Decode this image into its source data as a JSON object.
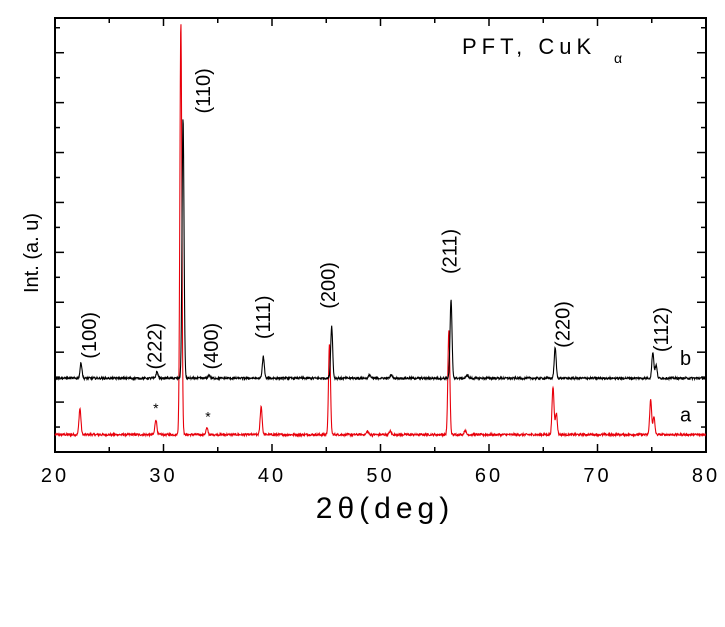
{
  "chart_data": {
    "type": "line",
    "annotation_title": "PFT, CuK",
    "annotation_title_sub": "α",
    "xlabel": "2θ(deg)",
    "ylabel": "Int. (a. u)",
    "xlim": [
      20,
      80
    ],
    "ylim": [
      0,
      100
    ],
    "x_ticks": [
      "20",
      "30",
      "40",
      "50",
      "60",
      "70",
      "80"
    ],
    "grid": false,
    "series": [
      {
        "name": "a",
        "color": "#e8000b",
        "baseline": 4,
        "peaks": [
          {
            "x": 22.3,
            "h": 6
          },
          {
            "x": 29.3,
            "h": 3.5
          },
          {
            "x": 31.6,
            "h": 95
          },
          {
            "x": 34.0,
            "h": 1.5
          },
          {
            "x": 39.0,
            "h": 6.5
          },
          {
            "x": 45.3,
            "h": 21
          },
          {
            "x": 48.8,
            "h": 0.8
          },
          {
            "x": 50.9,
            "h": 0.8
          },
          {
            "x": 56.3,
            "h": 24
          },
          {
            "x": 57.8,
            "h": 1
          },
          {
            "x": 65.9,
            "h": 11
          },
          {
            "x": 66.2,
            "h": 5
          },
          {
            "x": 74.9,
            "h": 8
          },
          {
            "x": 75.2,
            "h": 4
          }
        ]
      },
      {
        "name": "b",
        "color": "#000000",
        "baseline": 17,
        "peaks": [
          {
            "x": 22.4,
            "h": 3.5
          },
          {
            "x": 29.4,
            "h": 1.5
          },
          {
            "x": 31.8,
            "h": 60
          },
          {
            "x": 34.2,
            "h": 0.8
          },
          {
            "x": 39.2,
            "h": 5
          },
          {
            "x": 45.5,
            "h": 12
          },
          {
            "x": 49.0,
            "h": 0.8
          },
          {
            "x": 51.0,
            "h": 0.8
          },
          {
            "x": 56.5,
            "h": 18
          },
          {
            "x": 58.0,
            "h": 0.8
          },
          {
            "x": 66.1,
            "h": 7
          },
          {
            "x": 75.1,
            "h": 6
          },
          {
            "x": 75.4,
            "h": 3
          }
        ]
      }
    ],
    "peak_labels": [
      {
        "text": "(100)",
        "x": 23.8,
        "y": 21.5
      },
      {
        "text": "(222)",
        "x": 29.8,
        "y": 19
      },
      {
        "text": "(110)",
        "x": 34.3,
        "y": 78
      },
      {
        "text": "(400)",
        "x": 35.0,
        "y": 19
      },
      {
        "text": "(111)",
        "x": 39.8,
        "y": 26
      },
      {
        "text": "(200)",
        "x": 45.8,
        "y": 33
      },
      {
        "text": "(211)",
        "x": 57.0,
        "y": 41
      },
      {
        "text": "(220)",
        "x": 67.4,
        "y": 24
      },
      {
        "text": "(112)",
        "x": 76.5,
        "y": 23
      }
    ],
    "markers": [
      {
        "text": "*",
        "x": 29.3,
        "y": 9
      },
      {
        "text": "*",
        "x": 34.1,
        "y": 7
      }
    ],
    "series_labels": [
      {
        "text": "b",
        "x": 77.6,
        "y": 20
      },
      {
        "text": "a",
        "x": 77.6,
        "y": 7
      }
    ]
  }
}
